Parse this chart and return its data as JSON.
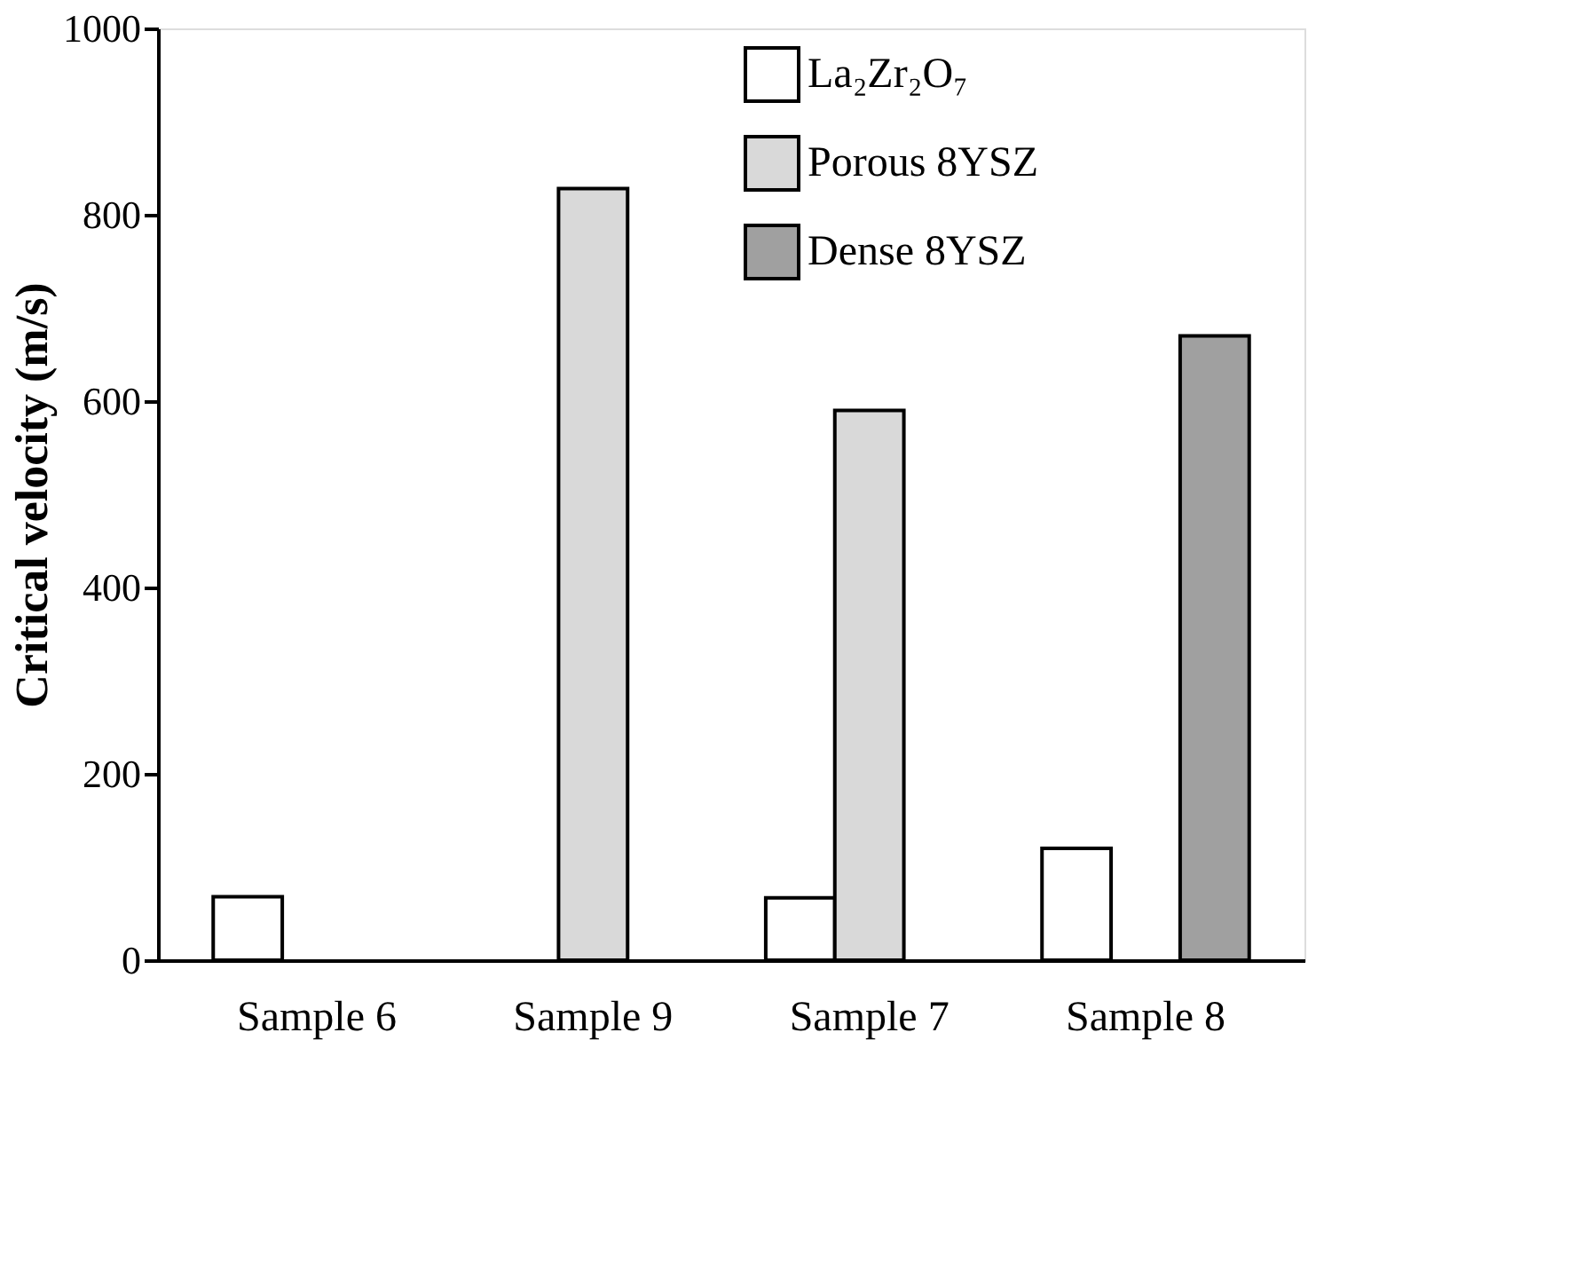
{
  "chart_data": {
    "type": "bar",
    "ylabel": "Critical velocity (m/s)",
    "categories": [
      "Sample 6",
      "Sample 9",
      "Sample 7",
      "Sample 8"
    ],
    "series": [
      {
        "name": "La₂Zr₂O₇",
        "color": "#ffffff",
        "values": [
          68,
          null,
          67,
          120
        ]
      },
      {
        "name": "Porous 8YSZ",
        "color": "#d9d9d9",
        "values": [
          null,
          828,
          590,
          null
        ]
      },
      {
        "name": "Dense 8YSZ",
        "color": "#a0a0a0",
        "values": [
          null,
          null,
          null,
          670
        ]
      }
    ],
    "ylim": [
      0,
      1000
    ],
    "yticks": [
      0,
      200,
      400,
      600,
      800,
      1000
    ],
    "grid": false,
    "legend": "top right"
  }
}
